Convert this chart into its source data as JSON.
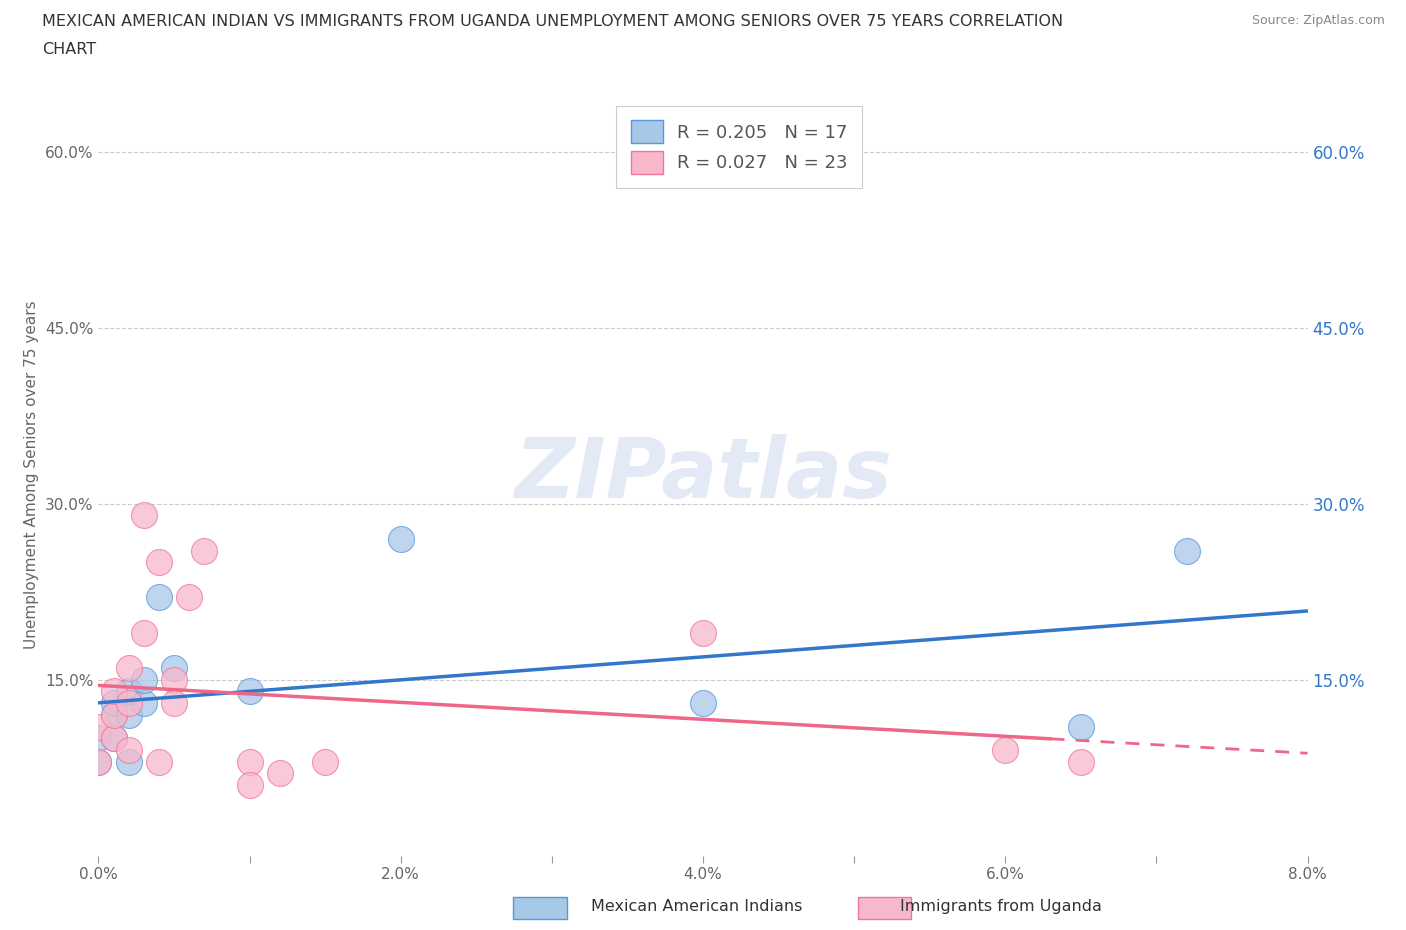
{
  "title_line1": "MEXICAN AMERICAN INDIAN VS IMMIGRANTS FROM UGANDA UNEMPLOYMENT AMONG SENIORS OVER 75 YEARS CORRELATION",
  "title_line2": "CHART",
  "source_text": "Source: ZipAtlas.com",
  "ylabel": "Unemployment Among Seniors over 75 years",
  "xlim": [
    0.0,
    0.08
  ],
  "ylim": [
    0.0,
    0.65
  ],
  "ytick_vals": [
    0.0,
    0.15,
    0.3,
    0.45,
    0.6
  ],
  "ytick_labels": [
    "",
    "15.0%",
    "30.0%",
    "45.0%",
    "60.0%"
  ],
  "xtick_vals": [
    0.0,
    0.01,
    0.02,
    0.03,
    0.04,
    0.05,
    0.06,
    0.07,
    0.08
  ],
  "xtick_labels": [
    "0.0%",
    "",
    "2.0%",
    "",
    "4.0%",
    "",
    "6.0%",
    "",
    "8.0%"
  ],
  "blue_color": "#a8c8e8",
  "pink_color": "#f8b8cc",
  "blue_edge_color": "#5599dd",
  "pink_edge_color": "#ee7799",
  "blue_line_color": "#3377cc",
  "pink_line_color": "#ee6688",
  "blue_R": 0.205,
  "blue_N": 17,
  "pink_R": 0.027,
  "pink_N": 23,
  "watermark": "ZIPatlas",
  "background_color": "#ffffff",
  "grid_color": "#cccccc",
  "blue_x": [
    0.0,
    0.0,
    0.001,
    0.001,
    0.001,
    0.002,
    0.002,
    0.002,
    0.003,
    0.003,
    0.004,
    0.005,
    0.01,
    0.02,
    0.04,
    0.065,
    0.072
  ],
  "blue_y": [
    0.08,
    0.1,
    0.1,
    0.12,
    0.13,
    0.12,
    0.14,
    0.08,
    0.13,
    0.15,
    0.22,
    0.16,
    0.14,
    0.27,
    0.13,
    0.11,
    0.26
  ],
  "pink_x": [
    0.0,
    0.0,
    0.001,
    0.001,
    0.001,
    0.002,
    0.002,
    0.002,
    0.003,
    0.003,
    0.004,
    0.004,
    0.005,
    0.005,
    0.006,
    0.007,
    0.01,
    0.01,
    0.012,
    0.015,
    0.04,
    0.06,
    0.065
  ],
  "pink_y": [
    0.08,
    0.11,
    0.1,
    0.12,
    0.14,
    0.09,
    0.13,
    0.16,
    0.29,
    0.19,
    0.25,
    0.08,
    0.15,
    0.13,
    0.22,
    0.26,
    0.08,
    0.06,
    0.07,
    0.08,
    0.19,
    0.09,
    0.08
  ],
  "legend_blue_label": "R = 0.205   N = 17",
  "legend_pink_label": "R = 0.027   N = 23",
  "bottom_label_blue": "Mexican American Indians",
  "bottom_label_pink": "Immigrants from Uganda"
}
